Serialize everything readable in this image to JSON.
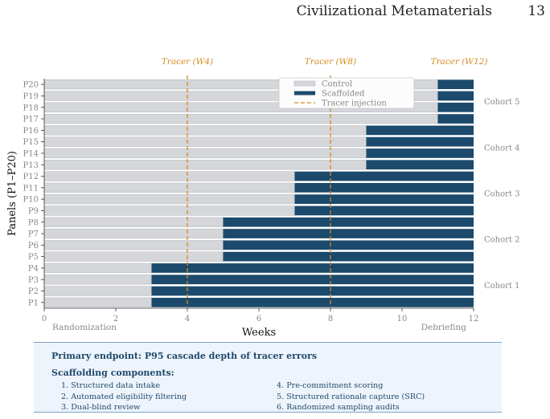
{
  "header": {
    "title": "Civilizational Metamaterials",
    "page_number": "13"
  },
  "chart_data": {
    "type": "bar",
    "orientation": "horizontal-stacked",
    "xlabel": "Weeks",
    "ylabel": "Panels (P1–P20)",
    "xlim": [
      0,
      12
    ],
    "xticks": [
      "0",
      "2",
      "4",
      "6",
      "8",
      "10",
      "12"
    ],
    "x_phase_labels": {
      "start": "Randomization",
      "end": "Debriefing"
    },
    "categories": [
      "P1",
      "P2",
      "P3",
      "P4",
      "P5",
      "P6",
      "P7",
      "P8",
      "P9",
      "P10",
      "P11",
      "P12",
      "P13",
      "P14",
      "P15",
      "P16",
      "P17",
      "P18",
      "P19",
      "P20"
    ],
    "series": [
      {
        "name": "Control",
        "color": "#d4d6da",
        "start": [
          0,
          0,
          0,
          0,
          0,
          0,
          0,
          0,
          0,
          0,
          0,
          0,
          0,
          0,
          0,
          0,
          0,
          0,
          0,
          0
        ],
        "end": [
          3,
          3,
          3,
          3,
          5,
          5,
          5,
          5,
          7,
          7,
          7,
          7,
          9,
          9,
          9,
          9,
          11,
          11,
          11,
          11
        ]
      },
      {
        "name": "Scaffolded",
        "color": "#1b4a6c",
        "start": [
          3,
          3,
          3,
          3,
          5,
          5,
          5,
          5,
          7,
          7,
          7,
          7,
          9,
          9,
          9,
          9,
          11,
          11,
          11,
          11
        ],
        "end": [
          12,
          12,
          12,
          12,
          12,
          12,
          12,
          12,
          12,
          12,
          12,
          12,
          12,
          12,
          12,
          12,
          12,
          12,
          12,
          12
        ]
      }
    ],
    "tracer_injections": {
      "name": "Tracer injection",
      "color": "#d68a1c",
      "markers": [
        {
          "week": 4,
          "label": "Tracer (W4)",
          "line": true
        },
        {
          "week": 8,
          "label": "Tracer (W8)",
          "line": true
        },
        {
          "week": 12,
          "label": "Tracer (W12)",
          "line": false
        }
      ]
    },
    "cohorts": [
      {
        "label": "Cohort 1",
        "panels": [
          "P1",
          "P4"
        ]
      },
      {
        "label": "Cohort 2",
        "panels": [
          "P5",
          "P8"
        ]
      },
      {
        "label": "Cohort 3",
        "panels": [
          "P9",
          "P12"
        ]
      },
      {
        "label": "Cohort 4",
        "panels": [
          "P13",
          "P16"
        ]
      },
      {
        "label": "Cohort 5",
        "panels": [
          "P17",
          "P20"
        ]
      }
    ],
    "legend": {
      "placement": "top-center",
      "entries": [
        "Control",
        "Scaffolded",
        "Tracer injection"
      ]
    },
    "grid": false
  },
  "info_box": {
    "endpoint": "Primary endpoint: P95 cascade depth of tracer errors",
    "components_heading": "Scaffolding components:",
    "components": [
      "1. Structured data intake",
      "2. Automated eligibility filtering",
      "3. Dual-blind review",
      "4. Pre-commitment scoring",
      "5. Structured rationale capture (SRC)",
      "6. Randomized sampling audits"
    ]
  }
}
